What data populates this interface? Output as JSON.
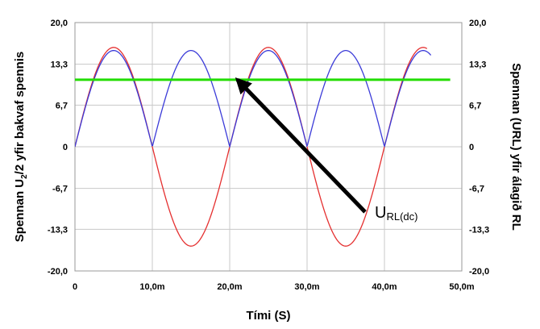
{
  "chart_data": {
    "type": "line",
    "xlabel": "Tími (S)",
    "ylabel_left": "Spennan U2/2 yfir bakvaf spennis",
    "ylabel_left_parts": {
      "pre": "Spennan U",
      "sub": "2",
      "post": "/2 yfir bakvaf spennis"
    },
    "ylabel_right": "Spennan (URL) yfir álagið RL",
    "xlim": [
      0,
      50
    ],
    "ylim": [
      -20,
      20
    ],
    "x_ticks": [
      0,
      10,
      20,
      30,
      40,
      50
    ],
    "x_tick_labels": [
      "0",
      "10,0m",
      "20,0m",
      "30,0m",
      "40,0m",
      "50,0m"
    ],
    "y_ticks": [
      20,
      13.3,
      6.7,
      0,
      -6.7,
      -13.3,
      -20
    ],
    "y_tick_labels": [
      "20,0",
      "13,3",
      "6,7",
      "0",
      "-6,7",
      "-13,3",
      "-20,0"
    ],
    "grid": true,
    "legend": "none",
    "series": [
      {
        "color": "#e53030",
        "kind": "sine",
        "amplitude": 16,
        "period_ms": 20,
        "x_start": 0,
        "x_end": 45.5
      },
      {
        "color": "#3b3bd8",
        "kind": "rectified-sine",
        "amplitude": 15.5,
        "period_ms": 20,
        "x_start": 0,
        "x_end": 46
      },
      {
        "color": "#22dd00",
        "kind": "constant",
        "value": 10.8,
        "x_start": -0.5,
        "x_end": 48.5
      }
    ],
    "annotations": [
      {
        "text_main": "U",
        "text_sub": "RL(dc)",
        "arrow_from": [
          37.5,
          -10.5
        ],
        "arrow_to": [
          21,
          10.8
        ]
      }
    ]
  },
  "colors": {
    "grid": "#c8c8c8",
    "frame": "#9a9a9a",
    "arrow": "#000000"
  }
}
